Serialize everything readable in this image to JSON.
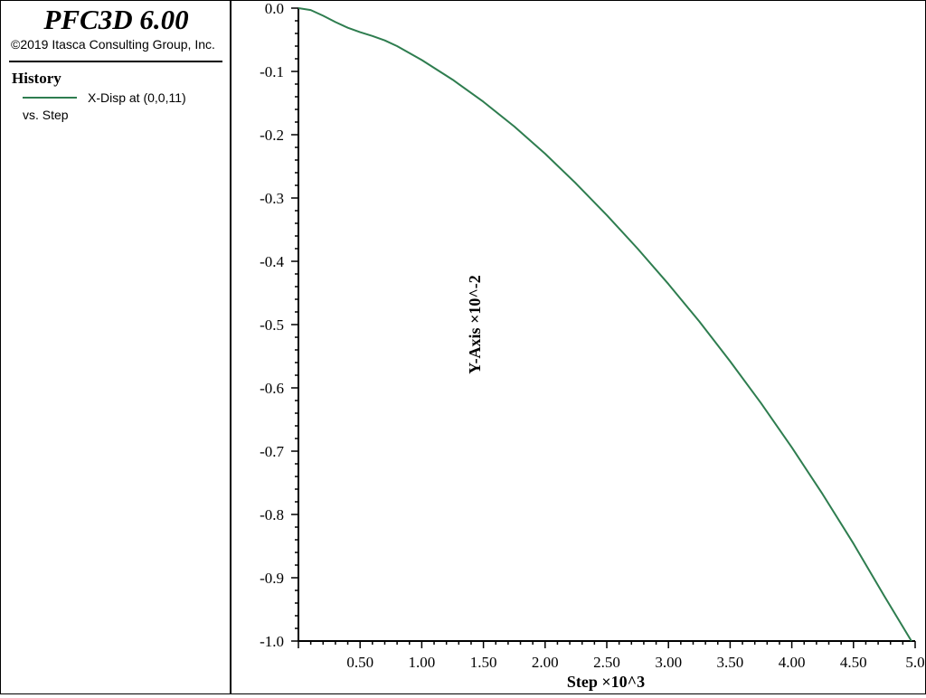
{
  "app": {
    "title": "PFC3D 6.00",
    "copyright": "©2019 Itasca Consulting Group, Inc."
  },
  "legend": {
    "heading": "History",
    "series_label": "X-Disp at (0,0,11)",
    "vs_label": "vs. Step",
    "color": "#2e7d4f"
  },
  "chart_data": {
    "type": "line",
    "xlabel": "Step ×10^3",
    "ylabel": "Y-Axis ×10^-2",
    "xlim": [
      0,
      5.0
    ],
    "ylim": [
      -1.0,
      0.0
    ],
    "xticks": [
      0.5,
      1.0,
      1.5,
      2.0,
      2.5,
      3.0,
      3.5,
      4.0,
      4.5,
      5.0
    ],
    "xtick_labels": [
      "0.50",
      "1.00",
      "1.50",
      "2.00",
      "2.50",
      "3.00",
      "3.50",
      "4.00",
      "4.50",
      "5.0"
    ],
    "yticks": [
      0.0,
      -0.1,
      -0.2,
      -0.3,
      -0.4,
      -0.5,
      -0.6,
      -0.7,
      -0.8,
      -0.9,
      -1.0
    ],
    "ytick_labels": [
      "0.0",
      "-0.1",
      "-0.2",
      "-0.3",
      "-0.4",
      "-0.5",
      "-0.6",
      "-0.7",
      "-0.8",
      "-0.9",
      "-1.0"
    ],
    "grid": false,
    "series": [
      {
        "color": "#2e7d4f",
        "x": [
          0.0,
          0.1,
          0.2,
          0.3,
          0.4,
          0.5,
          0.6,
          0.7,
          0.8,
          1.0,
          1.25,
          1.5,
          1.75,
          2.0,
          2.25,
          2.5,
          2.75,
          3.0,
          3.25,
          3.5,
          3.75,
          4.0,
          4.25,
          4.5,
          4.75,
          4.97
        ],
        "y": [
          0.0,
          -0.003,
          -0.012,
          -0.022,
          -0.031,
          -0.038,
          -0.044,
          -0.051,
          -0.06,
          -0.082,
          -0.113,
          -0.148,
          -0.187,
          -0.23,
          -0.277,
          -0.327,
          -0.38,
          -0.436,
          -0.495,
          -0.558,
          -0.624,
          -0.694,
          -0.768,
          -0.846,
          -0.929,
          -1.0
        ]
      }
    ]
  }
}
